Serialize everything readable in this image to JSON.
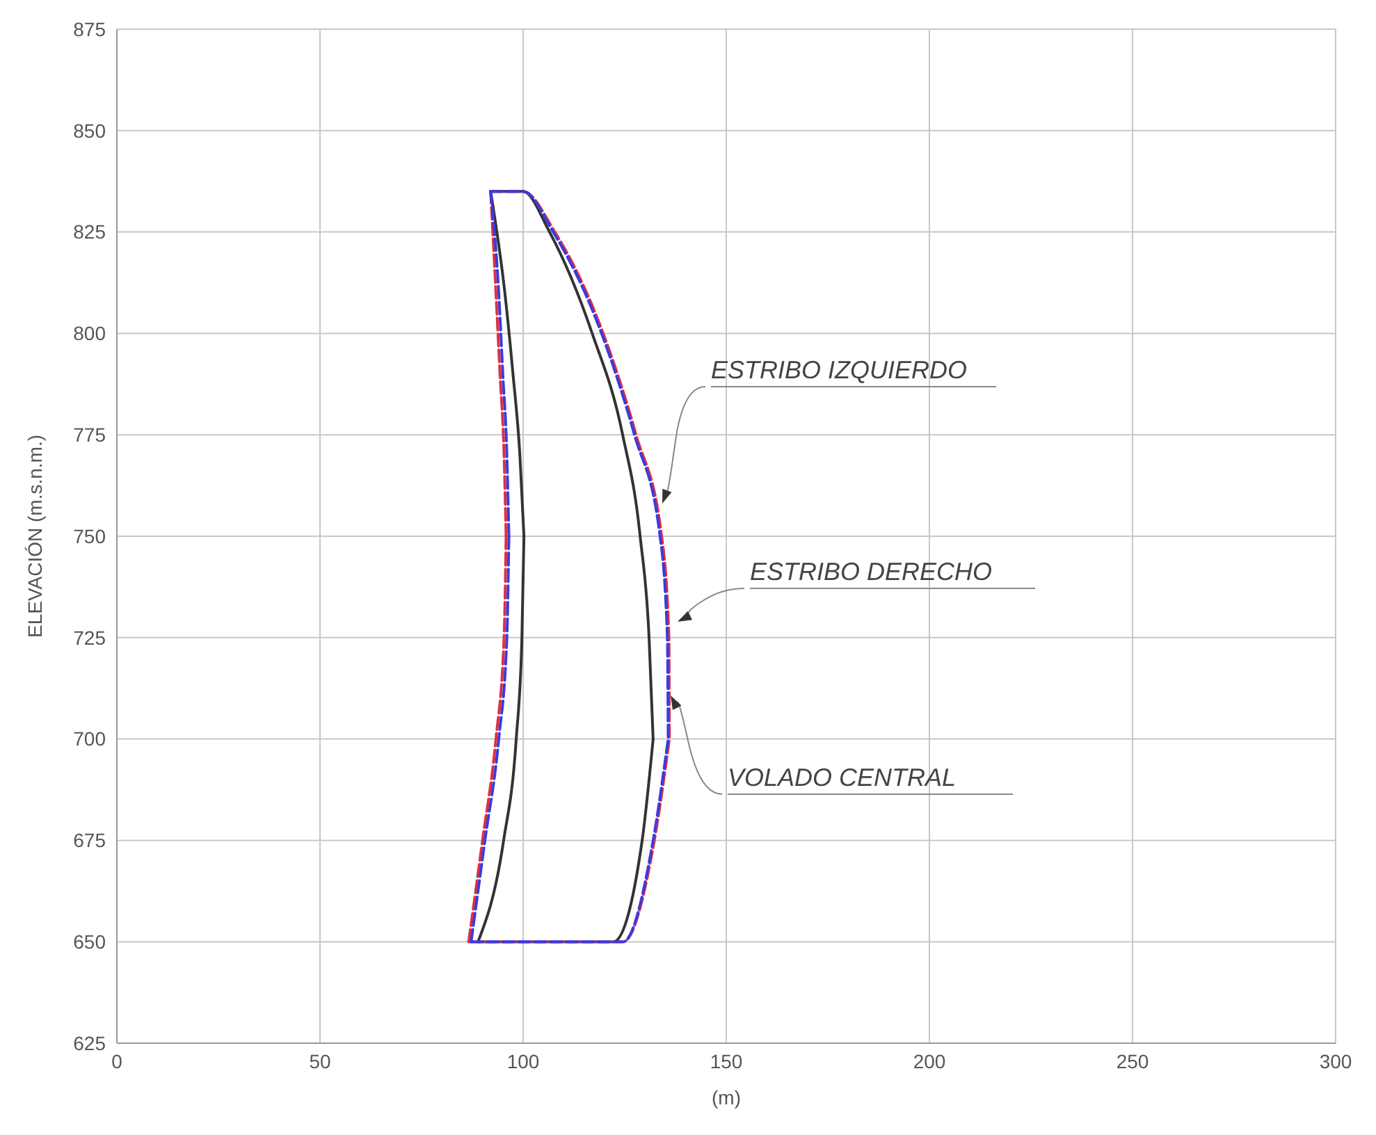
{
  "chart_data": {
    "type": "line",
    "xlabel": "(m)",
    "ylabel": "ELEVACIÓN (m.s.n.m.)",
    "xlim": [
      0,
      300
    ],
    "xticks": [
      0,
      50,
      100,
      150,
      200,
      250,
      300
    ],
    "ylim": [
      625,
      875
    ],
    "yticks": [
      625,
      650,
      675,
      700,
      725,
      750,
      775,
      800,
      825,
      850,
      875
    ],
    "grid": true,
    "marker": "none",
    "series": [
      {
        "color": "#333333",
        "line_style": "solid",
        "x": [
          92,
          95.5,
          97.5,
          99.2,
          100.2
        ],
        "values": [
          835,
          810,
          790,
          770,
          750
        ]
      },
      {
        "color": "#333333",
        "line_style": "solid",
        "x": [
          88.9,
          95.2,
          98.3,
          99.7,
          100.2
        ],
        "values": [
          650,
          675,
          700,
          725,
          750
        ]
      },
      {
        "color": "#333333",
        "line_style": "solid",
        "x": [
          88.9,
          122.2,
          129.3,
          132
        ],
        "values": [
          650,
          650,
          675,
          700
        ]
      },
      {
        "color": "#333333",
        "line_style": "solid",
        "x": [
          92,
          100,
          106.5,
          117,
          124.5,
          128.8,
          131,
          132
        ],
        "values": [
          835,
          835,
          825,
          800,
          775,
          750,
          725,
          700
        ]
      },
      {
        "color": "#e03040",
        "line_style": "dashed",
        "x": [
          92,
          93.3,
          94.3,
          95.3,
          95.8
        ],
        "values": [
          835,
          810,
          790,
          770,
          750
        ]
      },
      {
        "color": "#e03040",
        "line_style": "dashed",
        "x": [
          86.6,
          90,
          93.3,
          95.3,
          95.8
        ],
        "values": [
          650,
          675,
          700,
          725,
          750
        ]
      },
      {
        "color": "#e03040",
        "line_style": "dashed",
        "x": [
          86.6,
          124.6,
          132.3,
          136
        ],
        "values": [
          650,
          650,
          675,
          700
        ]
      },
      {
        "color": "#e03040",
        "line_style": "dashed",
        "x": [
          92,
          100,
          107.8,
          119.7,
          127.8,
          134.1,
          135.9,
          136
        ],
        "values": [
          835,
          835,
          825,
          800,
          775,
          750,
          725,
          700
        ]
      },
      {
        "color": "#3a3ae0",
        "line_style": "dashed",
        "x": [
          92,
          94,
          95,
          96,
          96.5
        ],
        "values": [
          835,
          810,
          790,
          770,
          750
        ]
      },
      {
        "color": "#3a3ae0",
        "line_style": "dashed",
        "x": [
          87.2,
          90.6,
          94,
          96,
          96.5
        ],
        "values": [
          650,
          675,
          700,
          725,
          750
        ]
      },
      {
        "color": "#3a3ae0",
        "line_style": "dashed",
        "x": [
          87.2,
          124.6,
          132,
          135.7
        ],
        "values": [
          650,
          650,
          675,
          700
        ]
      },
      {
        "color": "#3a3ae0",
        "line_style": "dashed",
        "x": [
          92,
          100,
          107.4,
          119.3,
          127.4,
          133.7,
          135.5,
          135.7
        ],
        "values": [
          835,
          835,
          825,
          800,
          775,
          750,
          725,
          700
        ]
      }
    ],
    "annotations": [
      "ESTRIBO IZQUIERDO",
      "ESTRIBO DERECHO",
      "VOLADO CENTRAL"
    ]
  }
}
